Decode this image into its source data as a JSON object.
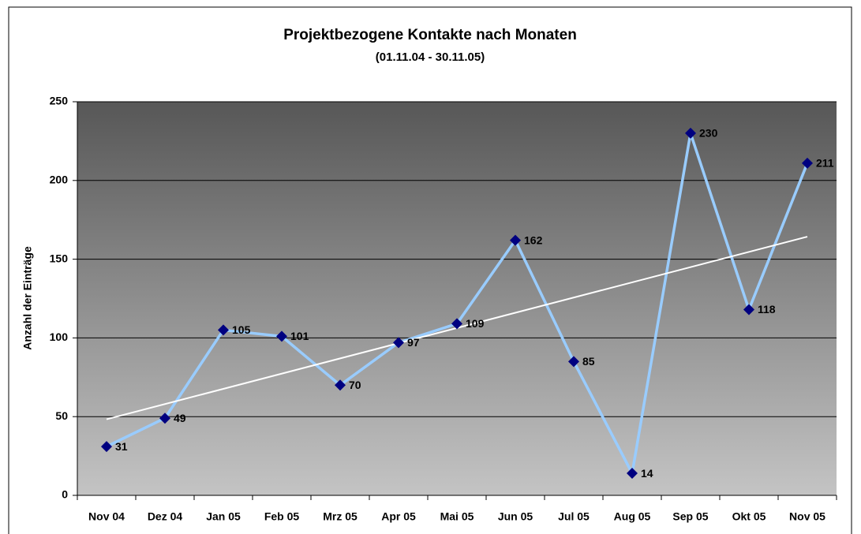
{
  "chart_data": {
    "type": "line",
    "title": "Projektbezogene Kontakte nach Monaten",
    "subtitle": "(01.11.04 - 30.11.05)",
    "y_label": "Anzahl der Einträge",
    "categories": [
      "Nov 04",
      "Dez 04",
      "Jan 05",
      "Feb 05",
      "Mrz 05",
      "Apr 05",
      "Mai 05",
      "Jun 05",
      "Jul 05",
      "Aug 05",
      "Sep 05",
      "Okt 05",
      "Nov 05"
    ],
    "values": [
      31,
      49,
      105,
      101,
      70,
      97,
      109,
      162,
      85,
      14,
      230,
      118,
      211
    ],
    "color": "#99ccff",
    "marker_color": "#000080",
    "trendline": true,
    "trendline_color": "#ffffff",
    "ylim": [
      0,
      250
    ],
    "yticks": [
      0,
      50,
      100,
      150,
      200,
      250
    ],
    "grid": true
  }
}
